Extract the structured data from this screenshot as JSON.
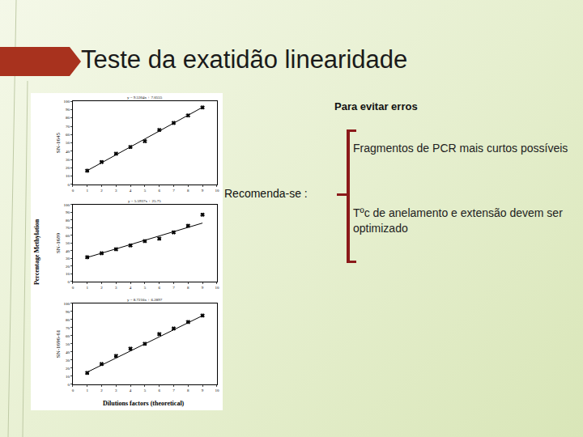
{
  "slide": {
    "title": "Teste da exatidão linearidade",
    "heading": "Para evitar erros",
    "lead": "Recomenda-se :",
    "items": [
      "Fragmentos de PCR mais curtos possíveis",
      "Tºc de anelamento e extensão devem  ser  optimizado"
    ]
  },
  "figure": {
    "y_label": "Percentage Methylation",
    "x_label": "Dilutions factors (theoretical)"
  },
  "chart_data": [
    {
      "type": "scatter",
      "title": "y = 9.5304x + 7.0555",
      "y_label": "SN-1645",
      "x": [
        1,
        2,
        3,
        4,
        5,
        6,
        7,
        8,
        9
      ],
      "values": [
        16.5,
        27,
        37,
        45,
        52,
        65.5,
        74,
        83,
        92.6
      ],
      "trendline": {
        "x": [
          1,
          9
        ],
        "values": [
          16.6,
          92.8
        ]
      },
      "xlim": [
        0,
        10
      ],
      "xticks": [
        0,
        1,
        2,
        3,
        4,
        5,
        6,
        7,
        8,
        9,
        10
      ],
      "ylim": [
        0,
        100
      ],
      "yticks": [
        0,
        10,
        20,
        30,
        40,
        50,
        60,
        70,
        80,
        90,
        100
      ],
      "color": "#000000",
      "marker": "x",
      "grid": false
    },
    {
      "type": "scatter",
      "title": "y = 5.5937x + 25.75",
      "y_label": "SN-1689",
      "x": [
        1,
        2,
        3,
        4,
        5,
        6,
        7,
        8,
        9
      ],
      "values": [
        31.6,
        36.8,
        42,
        47,
        52.6,
        55.8,
        64,
        72.6,
        87
      ],
      "trendline": {
        "x": [
          1,
          9
        ],
        "values": [
          31.3,
          76.1
        ]
      },
      "xlim": [
        0,
        10
      ],
      "xticks": [
        0,
        1,
        2,
        3,
        4,
        5,
        6,
        7,
        8,
        9,
        10
      ],
      "ylim": [
        0,
        100
      ],
      "yticks": [
        0,
        10,
        20,
        30,
        40,
        50,
        60,
        70,
        80,
        90,
        100
      ],
      "color": "#000000",
      "marker": "x",
      "grid": false
    },
    {
      "type": "scatter",
      "title": "y = 8.7216x + 6.2897",
      "y_label": "SN-1696-61",
      "x": [
        1,
        2,
        3,
        4,
        5,
        6,
        7,
        8,
        9
      ],
      "values": [
        14,
        25,
        35,
        44,
        50,
        62,
        69,
        77,
        85
      ],
      "trendline": {
        "x": [
          1,
          9
        ],
        "values": [
          15,
          84.8
        ]
      },
      "xlim": [
        0,
        10
      ],
      "xticks": [
        0,
        1,
        2,
        3,
        4,
        5,
        6,
        7,
        8,
        9,
        10
      ],
      "ylim": [
        0,
        100
      ],
      "yticks": [
        0,
        10,
        20,
        30,
        40,
        50,
        60,
        70,
        80,
        90,
        100
      ],
      "color": "#000000",
      "marker": "x",
      "grid": false
    }
  ]
}
